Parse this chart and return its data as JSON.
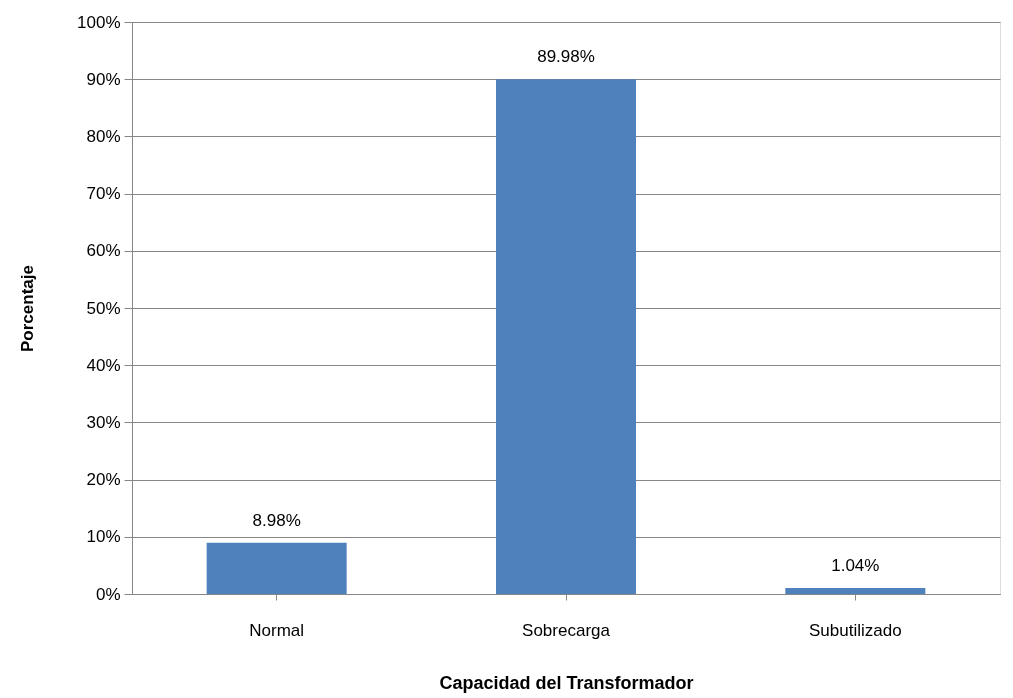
{
  "chart_data": {
    "type": "bar",
    "xlabel": "Capacidad del Transformador",
    "ylabel": "Porcentaje",
    "categories": [
      "Normal",
      "Sobrecarga",
      "Subutilizado"
    ],
    "values": [
      8.98,
      89.98,
      1.04
    ],
    "value_labels": [
      "8.98%",
      "89.98%",
      "1.04%"
    ],
    "color": "#4f81bd",
    "ylim": [
      0,
      100
    ],
    "yticks": [
      {
        "value": 0,
        "label": "0%"
      },
      {
        "value": 10,
        "label": "10%"
      },
      {
        "value": 20,
        "label": "20%"
      },
      {
        "value": 30,
        "label": "30%"
      },
      {
        "value": 40,
        "label": "40%"
      },
      {
        "value": 50,
        "label": "50%"
      },
      {
        "value": 60,
        "label": "60%"
      },
      {
        "value": 70,
        "label": "70%"
      },
      {
        "value": 80,
        "label": "80%"
      },
      {
        "value": 90,
        "label": "90%"
      },
      {
        "value": 100,
        "label": "100%"
      }
    ],
    "grid": "y"
  }
}
